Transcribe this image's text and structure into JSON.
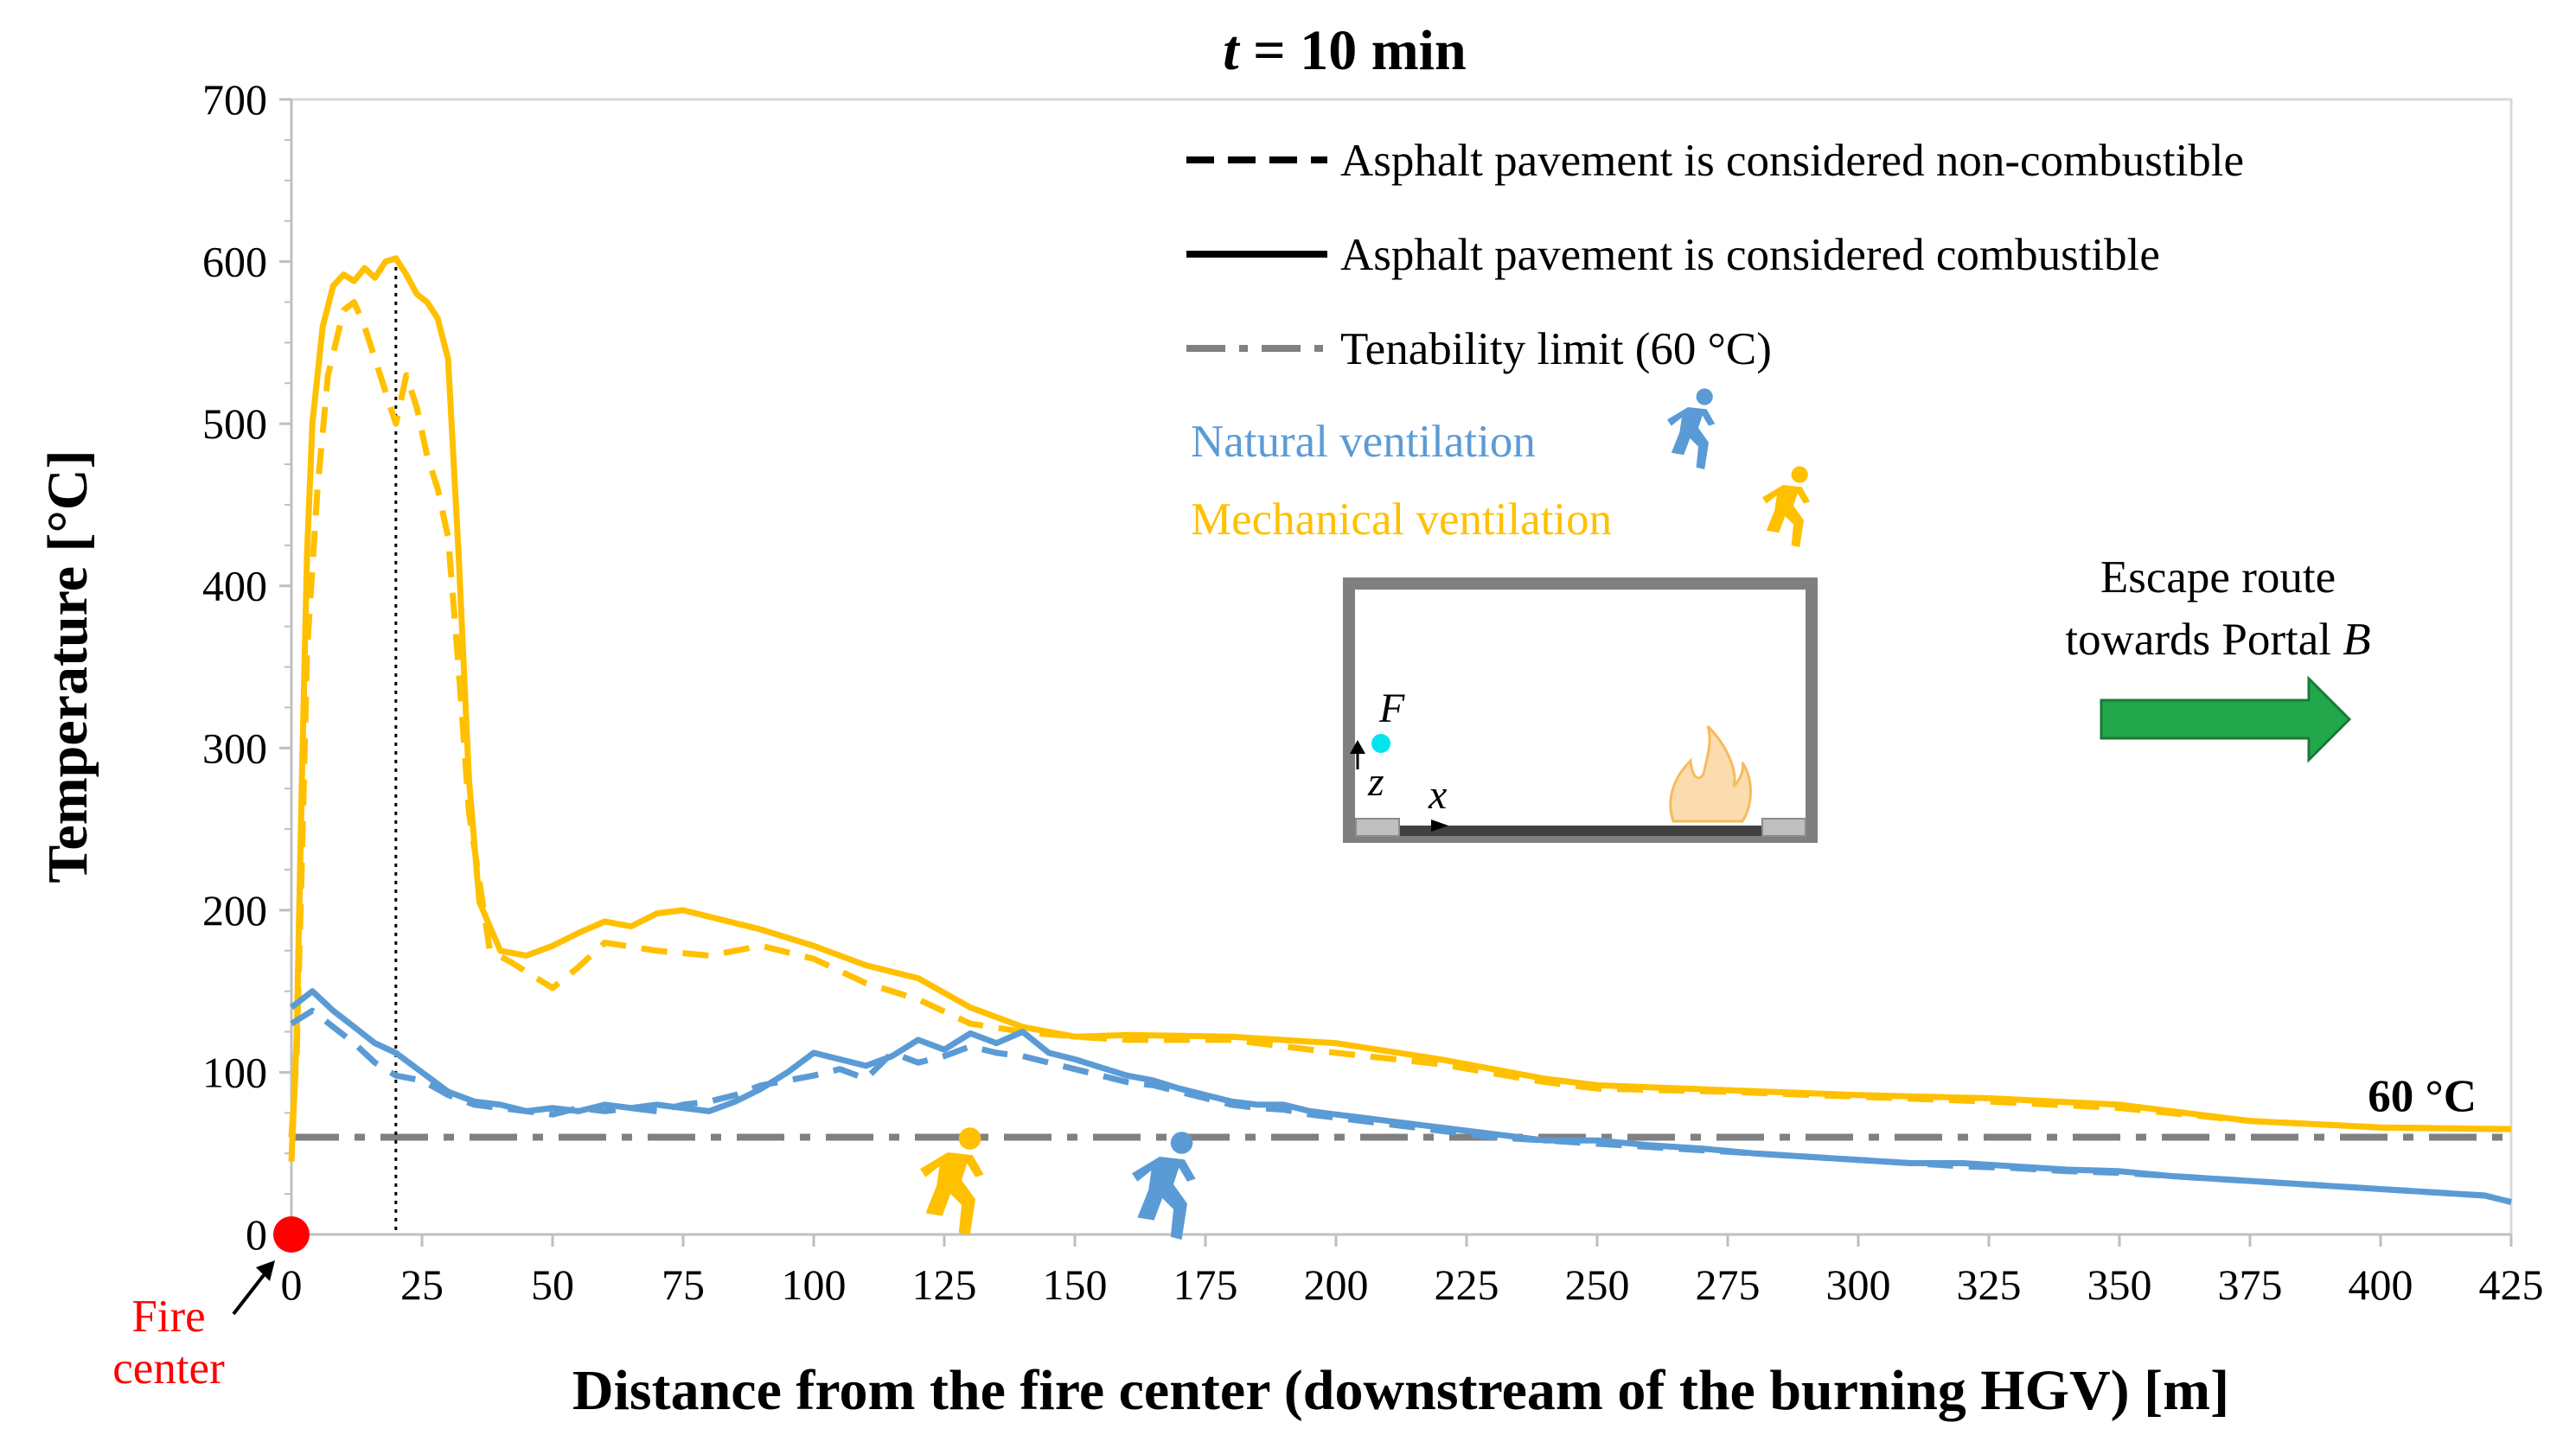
{
  "chart_data": {
    "type": "line",
    "title_var": "t",
    "title_rest": " = 10 min",
    "xlabel": "Distance from the fire center (downstream of the burning HGV) [m]",
    "ylabel": "Temperature [°C]",
    "xlim": [
      0,
      425
    ],
    "ylim": [
      0,
      700
    ],
    "x_ticks": [
      0,
      25,
      50,
      75,
      100,
      125,
      150,
      175,
      200,
      225,
      250,
      275,
      300,
      325,
      350,
      375,
      400,
      425
    ],
    "y_ticks": [
      0,
      100,
      200,
      300,
      400,
      500,
      600,
      700
    ],
    "grid": false,
    "legend": [
      {
        "label": "Asphalt pavement is considered non-combustible",
        "style": "dashed",
        "color": "#000000"
      },
      {
        "label": "Asphalt pavement is considered combustible",
        "style": "solid",
        "color": "#000000"
      },
      {
        "label": "Tenability limit (60 °C)",
        "style": "dash-dot",
        "color": "#808080"
      }
    ],
    "ventilation_labels": [
      {
        "label": "Natural ventilation",
        "color": "#5B9BD5"
      },
      {
        "label": "Mechanical ventilation",
        "color": "#FFC000"
      }
    ],
    "tenability_limit": 60,
    "tenability_label": "60 °C",
    "reference_x": 20,
    "series": [
      {
        "name": "Mechanical ventilation – combustible",
        "color": "#FFC000",
        "style": "solid",
        "x": [
          0,
          1,
          2,
          3,
          4,
          6,
          8,
          10,
          12,
          14,
          16,
          18,
          20,
          22,
          24,
          26,
          28,
          30,
          32,
          34,
          36,
          40,
          45,
          50,
          55,
          60,
          65,
          70,
          75,
          80,
          90,
          100,
          110,
          120,
          130,
          140,
          150,
          160,
          180,
          200,
          220,
          240,
          250,
          275,
          300,
          325,
          350,
          375,
          400,
          425
        ],
        "y": [
          45,
          120,
          280,
          420,
          500,
          560,
          585,
          592,
          588,
          596,
          590,
          600,
          602,
          592,
          580,
          575,
          565,
          540,
          420,
          280,
          205,
          175,
          172,
          178,
          186,
          193,
          190,
          198,
          200,
          196,
          188,
          178,
          166,
          158,
          140,
          128,
          122,
          123,
          122,
          118,
          108,
          96,
          92,
          89,
          86,
          84,
          80,
          70,
          66,
          65
        ]
      },
      {
        "name": "Mechanical ventilation – non-combustible",
        "color": "#FFC000",
        "style": "dashed",
        "x": [
          0,
          1,
          2,
          3,
          5,
          7,
          10,
          12,
          14,
          16,
          18,
          20,
          22,
          24,
          26,
          28,
          30,
          32,
          34,
          38,
          42,
          46,
          50,
          55,
          60,
          70,
          80,
          90,
          100,
          110,
          120,
          130,
          140,
          150,
          160,
          180,
          200,
          220,
          240,
          250,
          275,
          300,
          325,
          350,
          375,
          400,
          425
        ],
        "y": [
          60,
          110,
          230,
          360,
          460,
          530,
          570,
          575,
          560,
          540,
          520,
          500,
          530,
          510,
          480,
          460,
          430,
          350,
          260,
          175,
          168,
          160,
          152,
          165,
          180,
          175,
          172,
          178,
          170,
          155,
          145,
          130,
          125,
          122,
          120,
          120,
          112,
          105,
          94,
          90,
          88,
          85,
          82,
          78,
          70,
          66,
          65
        ]
      },
      {
        "name": "Natural ventilation – combustible",
        "color": "#5B9BD5",
        "style": "solid",
        "x": [
          0,
          4,
          8,
          12,
          16,
          20,
          25,
          30,
          35,
          40,
          45,
          50,
          55,
          60,
          65,
          70,
          75,
          80,
          85,
          90,
          95,
          100,
          105,
          110,
          115,
          120,
          125,
          130,
          135,
          140,
          145,
          150,
          155,
          160,
          165,
          170,
          175,
          180,
          185,
          190,
          195,
          200,
          205,
          210,
          215,
          220,
          225,
          230,
          240,
          250,
          260,
          270,
          280,
          290,
          300,
          310,
          320,
          330,
          340,
          350,
          360,
          370,
          380,
          390,
          400,
          410,
          420,
          425
        ],
        "y": [
          140,
          150,
          138,
          128,
          118,
          112,
          100,
          88,
          82,
          80,
          76,
          78,
          76,
          80,
          78,
          80,
          78,
          76,
          82,
          90,
          100,
          112,
          108,
          104,
          110,
          120,
          114,
          124,
          118,
          125,
          112,
          108,
          103,
          98,
          95,
          90,
          86,
          82,
          80,
          80,
          76,
          74,
          72,
          70,
          68,
          66,
          64,
          62,
          58,
          58,
          55,
          53,
          50,
          48,
          46,
          44,
          44,
          42,
          40,
          39,
          36,
          34,
          32,
          30,
          28,
          26,
          24,
          20
        ]
      },
      {
        "name": "Natural ventilation – non-combustible",
        "color": "#5B9BD5",
        "style": "dashed",
        "x": [
          0,
          4,
          8,
          12,
          16,
          20,
          25,
          30,
          35,
          40,
          45,
          50,
          55,
          60,
          65,
          70,
          75,
          80,
          85,
          90,
          95,
          100,
          105,
          110,
          115,
          120,
          125,
          130,
          135,
          140,
          145,
          150,
          155,
          160,
          165,
          170,
          175,
          180,
          185,
          190,
          195,
          200,
          205,
          210,
          215,
          220,
          225,
          230,
          240,
          250,
          260,
          270,
          280,
          290,
          300,
          310,
          320,
          330,
          340,
          350,
          360,
          370,
          380,
          390,
          400,
          410,
          420,
          425
        ],
        "y": [
          130,
          138,
          128,
          118,
          106,
          98,
          95,
          86,
          80,
          78,
          76,
          74,
          78,
          76,
          78,
          76,
          80,
          82,
          86,
          92,
          95,
          98,
          102,
          96,
          112,
          106,
          110,
          116,
          112,
          110,
          106,
          102,
          98,
          94,
          92,
          88,
          84,
          80,
          78,
          77,
          74,
          72,
          70,
          68,
          66,
          64,
          62,
          60,
          58,
          56,
          54,
          52,
          50,
          48,
          46,
          44,
          42,
          41,
          39,
          38,
          36,
          34,
          32,
          30,
          28,
          26,
          24,
          20
        ]
      }
    ],
    "annotations": {
      "fire_center_label_line1": "Fire",
      "fire_center_label_line2": "center",
      "escape_line1": "Escape route",
      "escape_line2_prefix": "towards Portal ",
      "escape_line2_italic": "B",
      "inset_point_label": "F",
      "inset_axis_z": "z",
      "inset_axis_x": "x",
      "escape_arrow_color": "#22A84A",
      "fire_marker_color": "#FF0000",
      "inset_point_color": "#00E5EE"
    }
  }
}
